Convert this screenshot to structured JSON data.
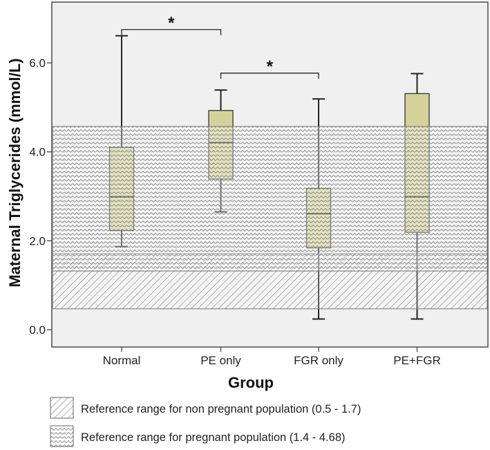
{
  "chart_data": {
    "type": "boxplot",
    "xlabel": "Group",
    "ylabel": "Maternal Triglycerides (mmol/L)",
    "ylim": [
      -0.4,
      7.35
    ],
    "yticks": [
      0.0,
      2.0,
      4.0,
      6.0
    ],
    "ytick_labels": [
      "0.0",
      "2.0",
      "4.0",
      "6.0"
    ],
    "categories": [
      "Normal",
      "PE only",
      "FGR only",
      "PE+FGR"
    ],
    "boxes": [
      {
        "group": "Normal",
        "min": 1.87,
        "q1": 2.23,
        "median": 2.99,
        "q3": 4.1,
        "max": 6.61
      },
      {
        "group": "PE only",
        "min": 2.65,
        "q1": 3.39,
        "median": 4.21,
        "q3": 4.93,
        "max": 5.39
      },
      {
        "group": "FGR only",
        "min": 0.24,
        "q1": 1.84,
        "median": 2.61,
        "q3": 3.18,
        "max": 5.19
      },
      {
        "group": "PE+FGR",
        "min": 0.24,
        "q1": 2.19,
        "median": 2.99,
        "q3": 5.31,
        "max": 5.76
      }
    ],
    "significance": [
      {
        "from": 0,
        "to": 1,
        "y": 6.75,
        "label": "*"
      },
      {
        "from": 1,
        "to": 2,
        "y": 5.77,
        "label": "*"
      }
    ],
    "reference_bands": [
      {
        "name": "non-pregnant",
        "pattern": "diagonal",
        "range": [
          0.5,
          1.7
        ],
        "plotted_range": [
          0.47,
          1.71
        ],
        "legend": "Reference range for non pregnant population (0.5 - 1.7)"
      },
      {
        "name": "pregnant",
        "pattern": "zigzag",
        "range": [
          1.4,
          4.68
        ],
        "plotted_range": [
          1.32,
          4.57
        ],
        "legend": "Reference range for pregnant population (1.4 - 4.68)"
      }
    ],
    "colors": {
      "plot_bg": "#f0f0f0",
      "box_fill": "#d6d29c",
      "box_stroke": "#333333"
    },
    "grid": false,
    "legend_position": "bottom-left"
  }
}
